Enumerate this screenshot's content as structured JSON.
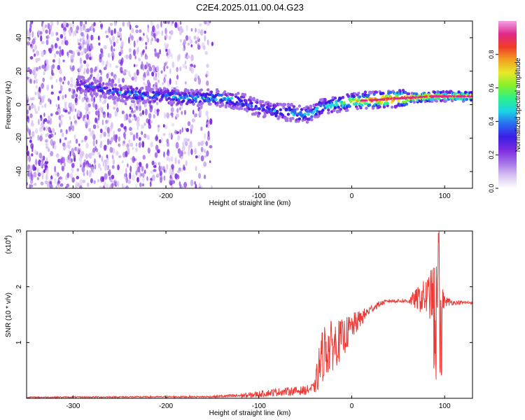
{
  "title": "C2E4.2025.011.00.04.G23",
  "colors": {
    "snr_line": "#ee3a36",
    "colormap": [
      "#ffffff",
      "#d8c2f2",
      "#a370e8",
      "#7a2ae0",
      "#3a1ee6",
      "#2a6cf0",
      "#1ad6e4",
      "#2cf08a",
      "#86f02a",
      "#e8e82a",
      "#f0a020",
      "#f03a2a",
      "#e02a8a",
      "#f0a0e8"
    ]
  },
  "chart_data": [
    {
      "type": "heatmap",
      "xlabel": "Height of straight line (km)",
      "ylabel": "Frequency (Hz)",
      "xlim": [
        -350,
        130
      ],
      "ylim": [
        -50,
        50
      ],
      "xticks": [
        -300,
        -200,
        -100,
        0,
        100
      ],
      "yticks": [
        -40,
        -20,
        0,
        20,
        40
      ],
      "colorbar": {
        "label": "Normalized spectral amplitude",
        "range": [
          0,
          1
        ],
        "ticks": [
          "0.0",
          "0.2",
          "0.4",
          "0.6",
          "0.8"
        ]
      },
      "ridge": {
        "x": [
          -290,
          -260,
          -230,
          -200,
          -170,
          -140,
          -120,
          -100,
          -80,
          -60,
          -45,
          -35,
          -20,
          0,
          30,
          60,
          90,
          130
        ],
        "y": [
          12,
          8,
          6,
          5,
          4,
          4,
          2,
          -2,
          -4,
          -5,
          -6,
          -2,
          0,
          2,
          3,
          4,
          5,
          5
        ],
        "amplitude": [
          0.3,
          0.35,
          0.4,
          0.4,
          0.45,
          0.45,
          0.4,
          0.35,
          0.4,
          0.45,
          0.45,
          0.5,
          0.55,
          0.7,
          0.85,
          0.9,
          0.85,
          0.85
        ]
      }
    },
    {
      "type": "line",
      "xlabel": "Height of straight line (km)",
      "ylabel": "SNR (10 * v/v)",
      "yscale_note": "(x10^4)",
      "xlim": [
        -350,
        130
      ],
      "ylim": [
        0,
        3
      ],
      "xticks": [
        -300,
        -200,
        -100,
        0,
        100
      ],
      "yticks": [
        1,
        2,
        3
      ],
      "series": [
        {
          "color": "#ee3a36",
          "envelope": {
            "x": [
              -350,
              -150,
              -110,
              -80,
              -50,
              -40,
              -35,
              -30,
              -20,
              -10,
              0,
              10,
              20,
              30,
              40,
              60,
              70,
              80,
              90,
              95,
              100,
              110,
              130
            ],
            "y": [
              0.02,
              0.03,
              0.06,
              0.12,
              0.15,
              0.2,
              0.6,
              0.9,
              1.0,
              1.1,
              1.3,
              1.45,
              1.6,
              1.7,
              1.75,
              1.75,
              1.8,
              1.85,
              1.95,
              1.85,
              1.75,
              1.72,
              1.72
            ]
          },
          "noise": {
            "x": [
              -350,
              -150,
              -110,
              -80,
              -50,
              -40,
              -35,
              -30,
              -20,
              -10,
              0,
              10,
              20,
              30,
              40,
              60,
              70,
              80,
              90,
              95,
              100,
              110,
              130
            ],
            "y": [
              0.01,
              0.015,
              0.05,
              0.07,
              0.08,
              0.1,
              0.45,
              0.5,
              0.45,
              0.35,
              0.25,
              0.15,
              0.08,
              0.05,
              0.03,
              0.04,
              0.2,
              0.35,
              0.55,
              0.4,
              0.1,
              0.04,
              0.03
            ]
          }
        }
      ]
    }
  ]
}
